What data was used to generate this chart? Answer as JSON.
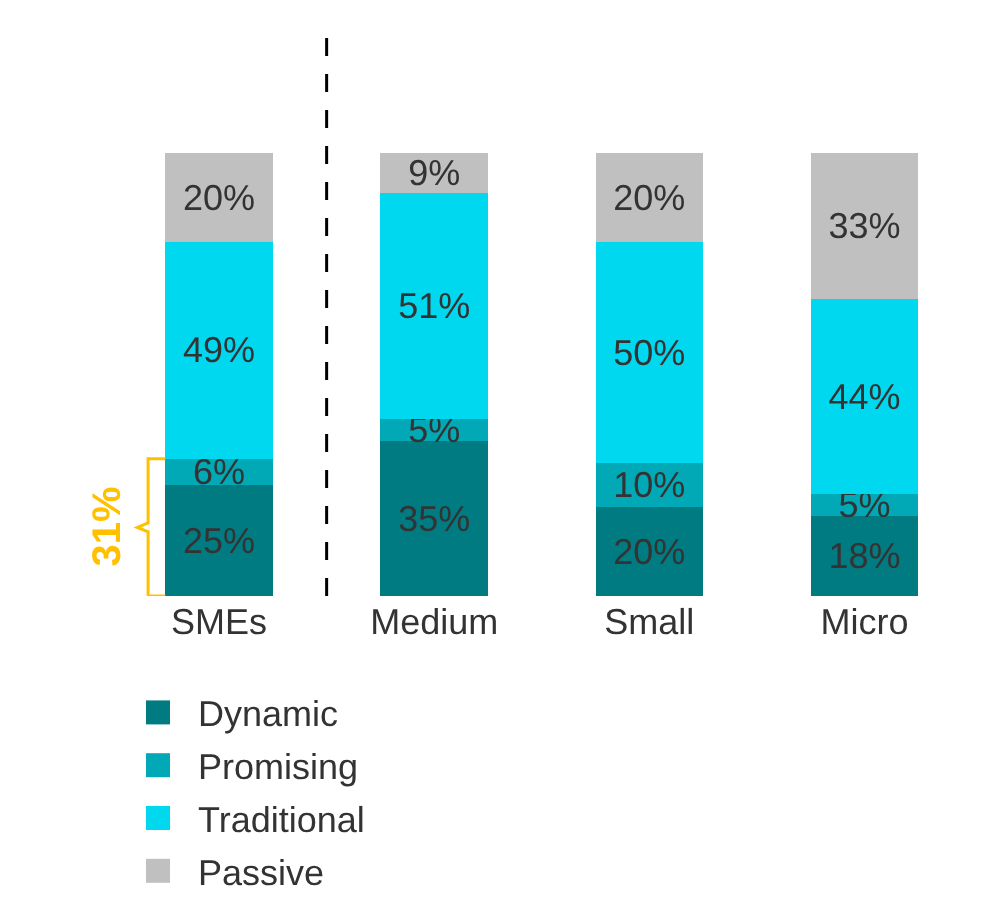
{
  "chart_data": {
    "type": "bar",
    "stacked": true,
    "legend": "bottom",
    "categories": [
      "SMEs",
      "Medium",
      "Small",
      "Micro"
    ],
    "series": [
      {
        "name": "Dynamic",
        "color": "#007b82",
        "values": [
          25,
          35,
          20,
          18
        ],
        "value_labels": [
          "25%",
          "35%",
          "20%",
          "18%"
        ]
      },
      {
        "name": "Promising",
        "color": "#00a9b5",
        "values": [
          6,
          5,
          10,
          5
        ],
        "value_labels": [
          "6%",
          "5%",
          "10%",
          "5%"
        ]
      },
      {
        "name": "Traditional",
        "color": "#00d8f0",
        "values": [
          49,
          51,
          50,
          44
        ],
        "value_labels": [
          "49%",
          "51%",
          "50%",
          "44%"
        ]
      },
      {
        "name": "Passive",
        "color": "#c0c0c0",
        "values": [
          20,
          9,
          20,
          33
        ],
        "value_labels": [
          "20%",
          "9%",
          "20%",
          "33%"
        ]
      }
    ],
    "annotations": [
      "31%"
    ]
  }
}
